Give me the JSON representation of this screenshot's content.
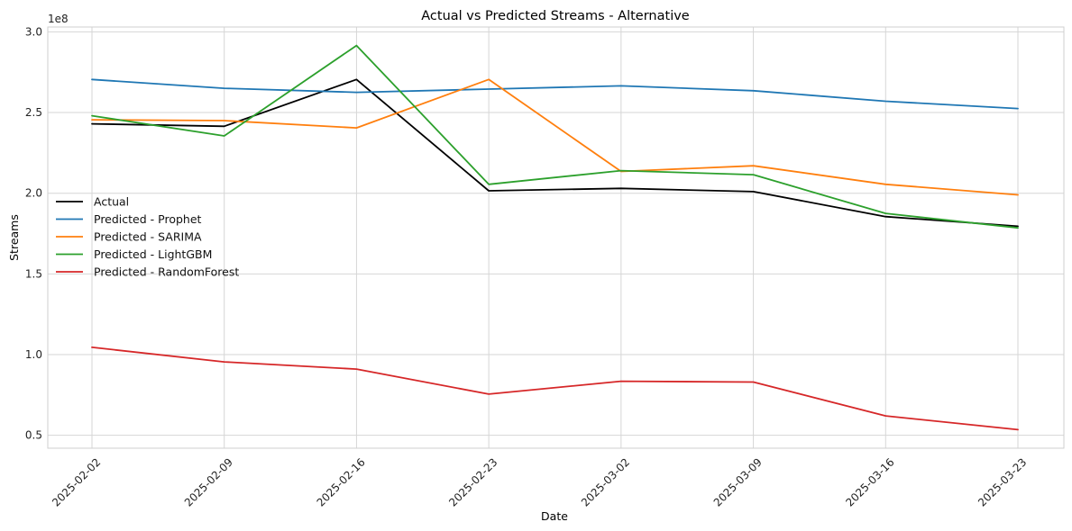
{
  "chart_data": {
    "type": "line",
    "title": "Actual vs Predicted Streams - Alternative",
    "xlabel": "Date",
    "ylabel": "Streams",
    "y_offset_text": "1e8",
    "x": [
      "2025-02-02",
      "2025-02-09",
      "2025-02-16",
      "2025-02-23",
      "2025-03-02",
      "2025-03-09",
      "2025-03-16",
      "2025-03-23"
    ],
    "y_ticks": [
      0.5,
      1.0,
      1.5,
      2.0,
      2.5,
      3.0
    ],
    "y_tick_labels": [
      "0.5",
      "1.0",
      "1.5",
      "2.0",
      "2.5",
      "3.0"
    ],
    "ylim": [
      0.42,
      3.03
    ],
    "grid": true,
    "legend_position": "center-left",
    "series": [
      {
        "name": "Actual",
        "color": "#000000",
        "values": [
          2.43,
          2.415,
          2.705,
          2.015,
          2.03,
          2.01,
          1.855,
          1.795
        ]
      },
      {
        "name": "Predicted - Prophet",
        "color": "#1f77b4",
        "values": [
          2.705,
          2.65,
          2.625,
          2.645,
          2.665,
          2.635,
          2.57,
          2.525
        ]
      },
      {
        "name": "Predicted - SARIMA",
        "color": "#ff7f0e",
        "values": [
          2.455,
          2.45,
          2.405,
          2.705,
          2.135,
          2.17,
          2.055,
          1.99
        ]
      },
      {
        "name": "Predicted - LightGBM",
        "color": "#2ca02c",
        "values": [
          2.48,
          2.355,
          2.915,
          2.055,
          2.14,
          2.115,
          1.875,
          1.785
        ]
      },
      {
        "name": "Predicted - RandomForest",
        "color": "#d62728",
        "values": [
          1.045,
          0.955,
          0.91,
          0.755,
          0.835,
          0.83,
          0.62,
          0.535
        ]
      }
    ]
  }
}
